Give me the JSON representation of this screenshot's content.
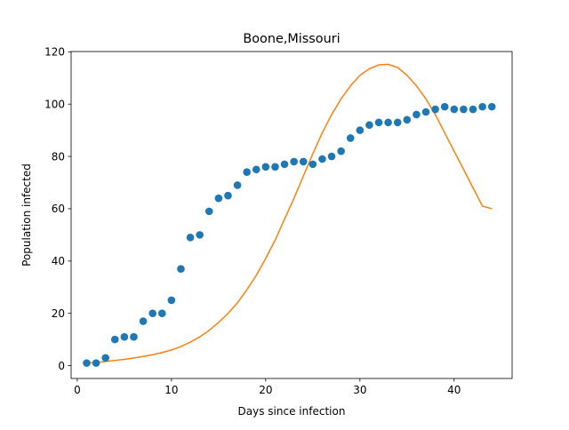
{
  "chart_data": {
    "type": "scatter",
    "title": "Boone,Missouri",
    "xlabel": "Days since infection",
    "ylabel": "Population infected",
    "xlim": [
      -0.65,
      46.15
    ],
    "ylim": [
      -4.9,
      120.1
    ],
    "xticks": [
      0,
      10,
      20,
      30,
      40
    ],
    "yticks": [
      0,
      20,
      40,
      60,
      80,
      100,
      120
    ],
    "grid": false,
    "series": [
      {
        "kind": "scatter",
        "color": "#1f77b4",
        "x": [
          1,
          2,
          3,
          4,
          5,
          6,
          7,
          8,
          9,
          10,
          11,
          12,
          13,
          14,
          15,
          16,
          17,
          18,
          19,
          20,
          21,
          22,
          23,
          24,
          25,
          26,
          27,
          28,
          29,
          30,
          31,
          32,
          33,
          34,
          35,
          36,
          37,
          38,
          39,
          40,
          41,
          42,
          43,
          44
        ],
        "y": [
          1,
          1,
          3,
          10,
          11,
          11,
          17,
          20,
          20,
          25,
          37,
          49,
          50,
          59,
          64,
          65,
          69,
          74,
          75,
          76,
          76,
          77,
          78,
          78,
          77,
          79,
          80,
          82,
          87,
          90,
          92,
          93,
          93,
          93,
          94,
          96,
          97,
          98,
          99,
          98,
          98,
          98,
          99,
          99
        ]
      },
      {
        "kind": "line",
        "color": "#ff7f0e",
        "x": [
          1,
          2,
          3,
          4,
          5,
          6,
          7,
          8,
          9,
          10,
          11,
          12,
          13,
          14,
          15,
          16,
          17,
          18,
          19,
          20,
          21,
          22,
          23,
          24,
          25,
          26,
          27,
          28,
          29,
          30,
          31,
          32,
          33,
          34,
          35,
          36,
          37,
          38,
          39,
          40,
          41,
          42,
          43,
          44
        ],
        "y": [
          1,
          1.2,
          1.6,
          2,
          2.4,
          2.9,
          3.5,
          4.2,
          5,
          6,
          7.3,
          9,
          11,
          13.5,
          16.5,
          20,
          24,
          29,
          34.5,
          41,
          48,
          56,
          64,
          72.5,
          81,
          89,
          96,
          102,
          107,
          111,
          113.5,
          115,
          115.2,
          114,
          111,
          107,
          102,
          96,
          89,
          82,
          75,
          68,
          61,
          60
        ]
      }
    ]
  }
}
